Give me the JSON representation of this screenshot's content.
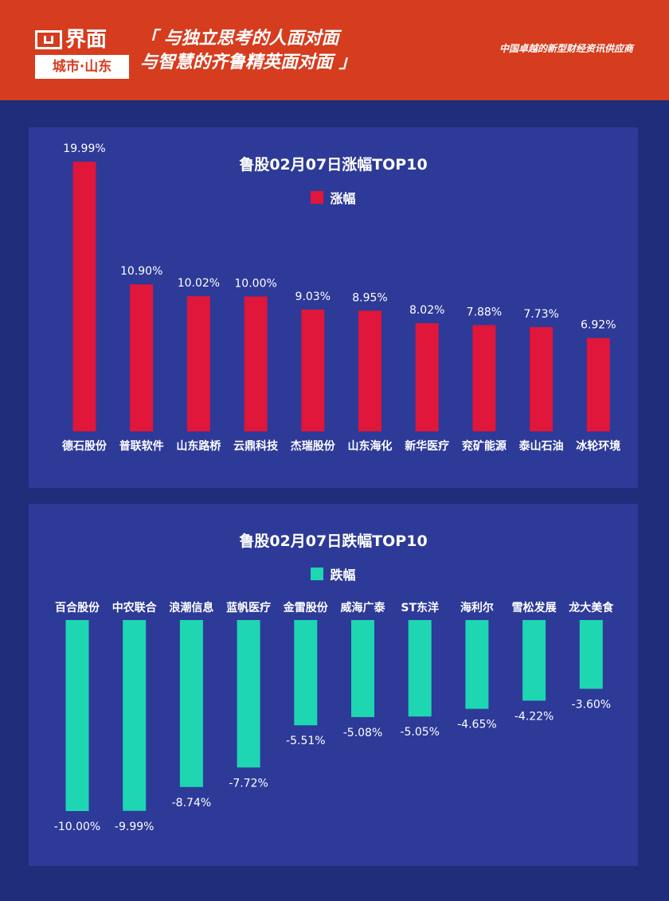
{
  "header": {
    "brand": "界面",
    "brand_sub": "城市·山东",
    "slogan_line1": "「 与独立思考的人面对面",
    "slogan_line2": "与智慧的齐鲁精英面对面 」",
    "tagline": "中国卓越的新型财经资讯供应商"
  },
  "colors": {
    "header_bg": "#d63c1e",
    "page_bg": "#1f2e7a",
    "panel_bg": "#2d3a98",
    "gain_bar": "#e0163a",
    "loss_bar": "#1ed6b2"
  },
  "chart_data": [
    {
      "type": "bar",
      "title": "鲁股02月07日涨幅TOP10",
      "series": [
        {
          "name": "涨幅",
          "values": [
            19.99,
            10.9,
            10.02,
            10.0,
            9.03,
            8.95,
            8.02,
            7.88,
            7.73,
            6.92
          ]
        }
      ],
      "categories": [
        "德石股份",
        "普联软件",
        "山东路桥",
        "云鼎科技",
        "杰瑞股份",
        "山东海化",
        "新华医疗",
        "兖矿能源",
        "泰山石油",
        "冰轮环境"
      ],
      "value_labels": [
        "19.99%",
        "10.90%",
        "10.02%",
        "10.00%",
        "9.03%",
        "8.95%",
        "8.02%",
        "7.88%",
        "7.73%",
        "6.92%"
      ],
      "ylim": [
        0,
        20
      ],
      "legend": "top-center"
    },
    {
      "type": "bar",
      "title": "鲁股02月07日跌幅TOP10",
      "series": [
        {
          "name": "跌幅",
          "values": [
            -10.0,
            -9.99,
            -8.74,
            -7.72,
            -5.51,
            -5.08,
            -5.05,
            -4.65,
            -4.22,
            -3.6
          ]
        }
      ],
      "categories": [
        "百合股份",
        "中农联合",
        "浪潮信息",
        "蓝帆医疗",
        "金雷股份",
        "威海广泰",
        "ST东洋",
        "海利尔",
        "雪松发展",
        "龙大美食"
      ],
      "value_labels": [
        "-10.00%",
        "-9.99%",
        "-8.74%",
        "-7.72%",
        "-5.51%",
        "-5.08%",
        "-5.05%",
        "-4.65%",
        "-4.22%",
        "-3.60%"
      ],
      "ylim": [
        -10,
        0
      ],
      "legend": "top-center"
    }
  ]
}
